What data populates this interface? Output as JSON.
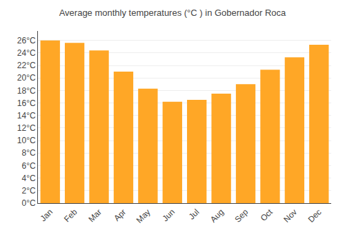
{
  "chart_data": {
    "type": "bar",
    "title": "Average monthly temperatures (°C ) in Gobernador Roca",
    "categories": [
      "Jan",
      "Feb",
      "Mar",
      "Apr",
      "May",
      "Jun",
      "Jul",
      "Aug",
      "Sep",
      "Oct",
      "Nov",
      "Dec"
    ],
    "values": [
      26.0,
      25.6,
      24.4,
      21.0,
      18.3,
      16.2,
      16.5,
      17.5,
      19.0,
      21.3,
      23.3,
      25.3
    ],
    "color": "#FFA726",
    "ylim": [
      0,
      27.5
    ],
    "yticks": [
      {
        "value": 0,
        "label": "0°C"
      },
      {
        "value": 2,
        "label": "2°C"
      },
      {
        "value": 4,
        "label": "4°C"
      },
      {
        "value": 6,
        "label": "6°C"
      },
      {
        "value": 8,
        "label": "8°C"
      },
      {
        "value": 10,
        "label": "10°C"
      },
      {
        "value": 12,
        "label": "12°C"
      },
      {
        "value": 14,
        "label": "14°C"
      },
      {
        "value": 16,
        "label": "16°C"
      },
      {
        "value": 18,
        "label": "18°C"
      },
      {
        "value": 20,
        "label": "20°C"
      },
      {
        "value": 22,
        "label": "22°C"
      },
      {
        "value": 24,
        "label": "24°C"
      },
      {
        "value": 26,
        "label": "26°C"
      }
    ],
    "grid": true
  }
}
